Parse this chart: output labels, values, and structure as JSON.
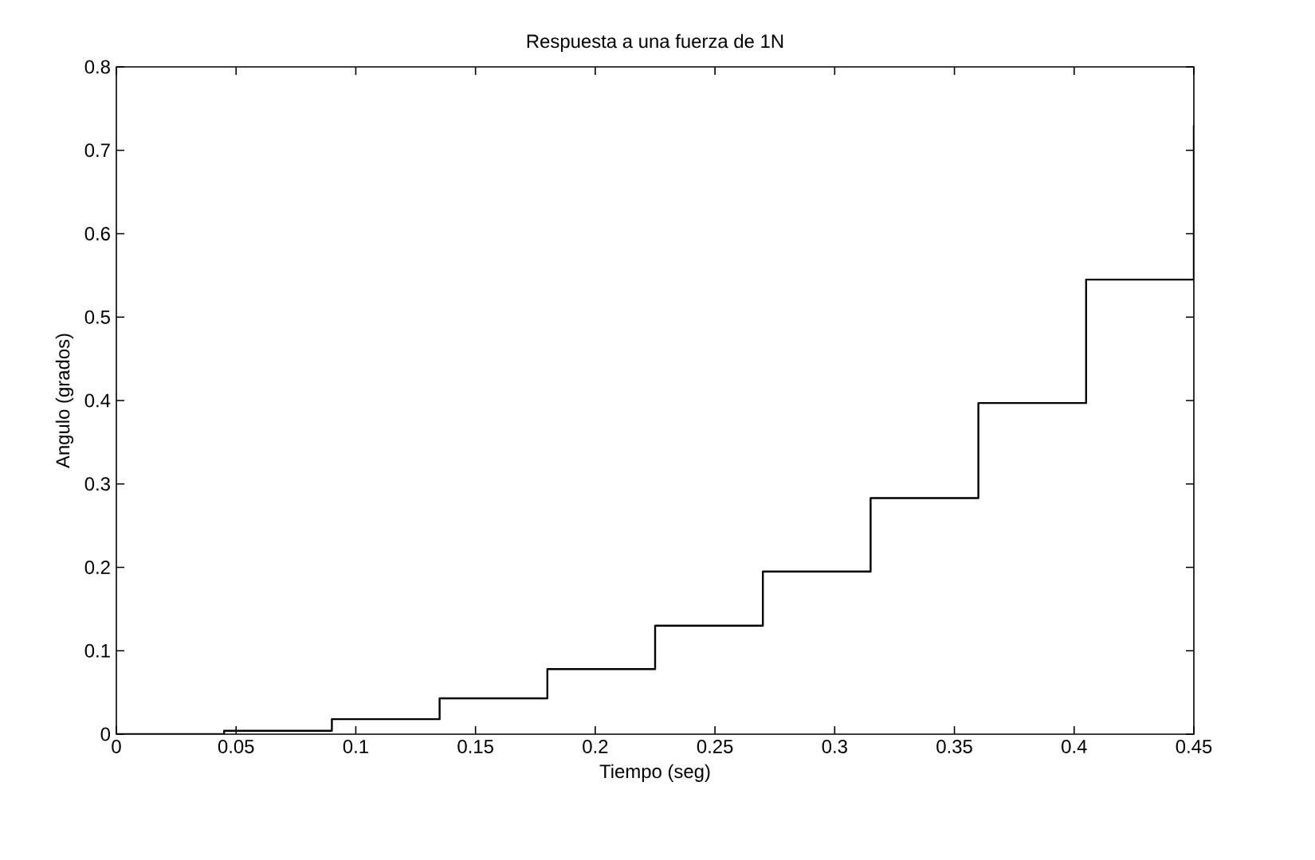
{
  "chart_data": {
    "type": "step",
    "title": "Respuesta a una fuerza de 1N",
    "xlabel": "Tiempo (seg)",
    "ylabel": "Angulo (grados)",
    "x": [
      0,
      0.045,
      0.09,
      0.135,
      0.18,
      0.225,
      0.27,
      0.315,
      0.36,
      0.405,
      0.45
    ],
    "series": [
      {
        "color": "#000000",
        "values": [
          0,
          0.004,
          0.018,
          0.043,
          0.078,
          0.13,
          0.195,
          0.283,
          0.397,
          0.545,
          0.73
        ]
      }
    ],
    "xlim": [
      0,
      0.45
    ],
    "ylim": [
      0,
      0.8
    ],
    "xticks": [
      0,
      0.05,
      0.1,
      0.15,
      0.2,
      0.25,
      0.3,
      0.35,
      0.4,
      0.45
    ],
    "yticks": [
      0,
      0.1,
      0.2,
      0.3,
      0.4,
      0.5,
      0.6,
      0.7,
      0.8
    ],
    "grid": false
  }
}
